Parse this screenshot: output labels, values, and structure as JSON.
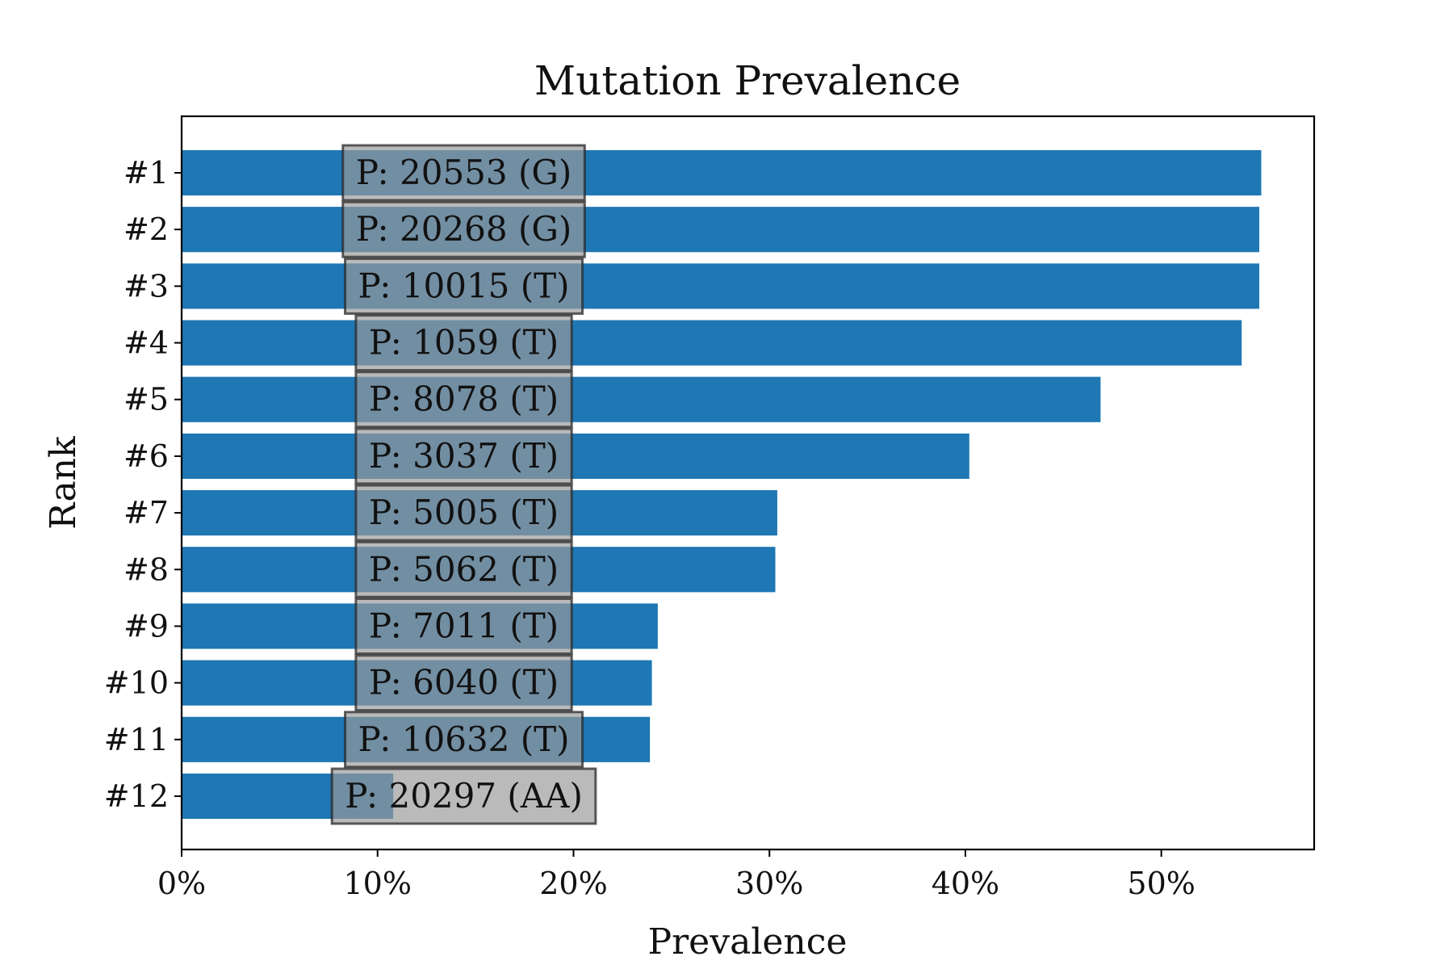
{
  "chart_data": {
    "type": "bar",
    "orientation": "horizontal",
    "title": "Mutation Prevalence",
    "xlabel": "Prevalence",
    "ylabel": "Rank",
    "categories": [
      "#1",
      "#2",
      "#3",
      "#4",
      "#5",
      "#6",
      "#7",
      "#8",
      "#9",
      "#10",
      "#11",
      "#12"
    ],
    "values": [
      55.1,
      55.0,
      55.0,
      54.1,
      46.9,
      40.2,
      30.4,
      30.3,
      24.3,
      24.0,
      23.9,
      10.8
    ],
    "annotations": [
      "P: 20553 (G)",
      "P: 20268 (G)",
      "P: 10015 (T)",
      "P: 1059 (T)",
      "P: 8078 (T)",
      "P: 3037 (T)",
      "P: 5005 (T)",
      "P: 5062 (T)",
      "P: 7011 (T)",
      "P: 6040 (T)",
      "P: 10632 (T)",
      "P: 20297 (AA)"
    ],
    "annotation_center_value": 14.4,
    "xlim": [
      0,
      57.8
    ],
    "xticks": [
      0,
      10,
      20,
      30,
      40,
      50
    ],
    "xtick_labels": [
      "0%",
      "10%",
      "20%",
      "30%",
      "40%",
      "50%"
    ],
    "grid": false,
    "legend": "none",
    "colors": {
      "bar": "#1f77b4",
      "label_box_fill": "#999999",
      "label_box_edge": "#2a2a2a",
      "text": "#111111",
      "axes": "#000000"
    }
  }
}
